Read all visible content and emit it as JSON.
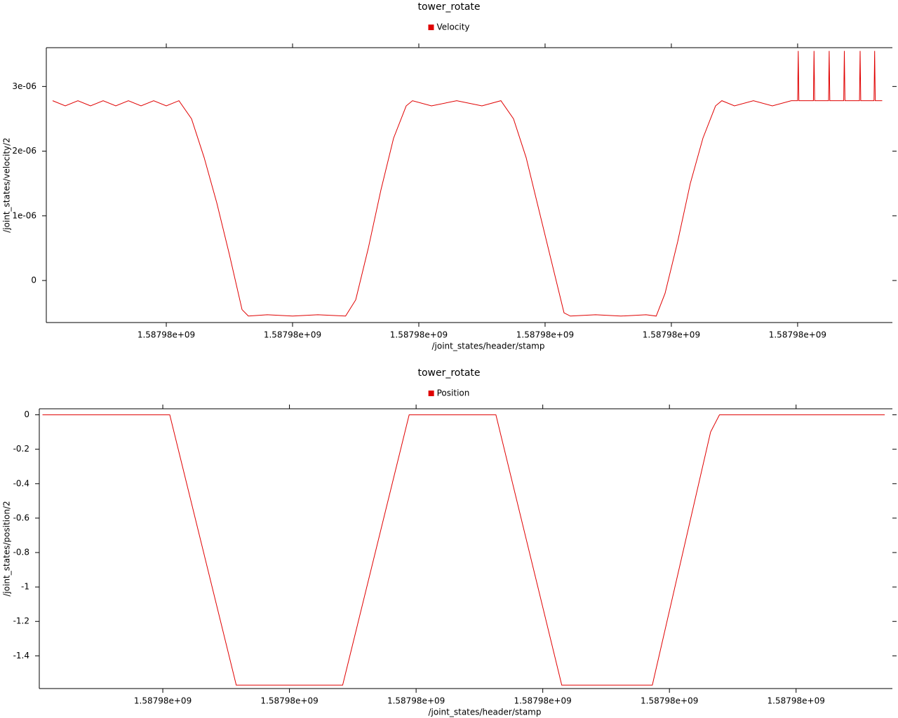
{
  "chart_data": [
    {
      "type": "line",
      "title": "tower_rotate",
      "x_label": "/joint_states/header/stamp",
      "y_label": "/joint_states/velocity/2",
      "x": [
        1587980002,
        1587980004,
        1587980006,
        1587980008,
        1587980010,
        1587980012,
        1587980014,
        1587980016,
        1587980018,
        1587980020,
        1587980022,
        1587980024,
        1587980026,
        1587980028,
        1587980030,
        1587980032,
        1587980033,
        1587980036,
        1587980040,
        1587980044,
        1587980048.4,
        1587980050,
        1587980052,
        1587980054,
        1587980056,
        1587980058,
        1587980059,
        1587980062,
        1587980066,
        1587980070,
        1587980073,
        1587980075,
        1587980077,
        1587980079,
        1587980081,
        1587980083,
        1587980084,
        1587980088,
        1587980092,
        1587980096,
        1587980097.6,
        1587980099,
        1587980101,
        1587980103,
        1587980105,
        1587980107,
        1587980108,
        1587980110,
        1587980113,
        1587980116,
        1587980119,
        1587980120,
        1587980120.1,
        1587980120.2,
        1587980122.5,
        1587980122.6,
        1587980122.7,
        1587980124.9,
        1587980125,
        1587980125.1,
        1587980127.3,
        1587980127.4,
        1587980127.5,
        1587980129.8,
        1587980129.9,
        1587980130,
        1587980132.1,
        1587980132.2,
        1587980132.3,
        1587980133.4
      ],
      "series": [
        {
          "name": "Velocity",
          "color": "#e00000",
          "values": [
            2.78e-06,
            2.7e-06,
            2.78e-06,
            2.7e-06,
            2.78e-06,
            2.7e-06,
            2.78e-06,
            2.7e-06,
            2.78e-06,
            2.7e-06,
            2.78e-06,
            2.5e-06,
            1.9e-06,
            1.2e-06,
            4e-07,
            -4.5e-07,
            -5.5e-07,
            -5.3e-07,
            -5.5e-07,
            -5.3e-07,
            -5.5e-07,
            -3e-07,
            5e-07,
            1.4e-06,
            2.2e-06,
            2.7e-06,
            2.78e-06,
            2.7e-06,
            2.78e-06,
            2.7e-06,
            2.78e-06,
            2.5e-06,
            1.9e-06,
            1.1e-06,
            3e-07,
            -5e-07,
            -5.5e-07,
            -5.3e-07,
            -5.5e-07,
            -5.3e-07,
            -5.5e-07,
            -2e-07,
            6e-07,
            1.5e-06,
            2.2e-06,
            2.7e-06,
            2.78e-06,
            2.7e-06,
            2.78e-06,
            2.7e-06,
            2.78e-06,
            2.78e-06,
            3.55e-06,
            2.78e-06,
            2.78e-06,
            3.55e-06,
            2.78e-06,
            2.78e-06,
            3.55e-06,
            2.78e-06,
            2.78e-06,
            3.55e-06,
            2.78e-06,
            2.78e-06,
            3.55e-06,
            2.78e-06,
            2.78e-06,
            3.55e-06,
            2.78e-06,
            2.78e-06
          ]
        }
      ],
      "xlim": [
        1587980001.44,
        1587980133.9
      ],
      "xticks": [
        {
          "value": 1587980020,
          "label": "1.58798e+09"
        },
        {
          "value": 1587980040,
          "label": "1.58798e+09"
        },
        {
          "value": 1587980060,
          "label": "1.58798e+09"
        },
        {
          "value": 1587980080,
          "label": "1.58798e+09"
        },
        {
          "value": 1587980100,
          "label": "1.58798e+09"
        },
        {
          "value": 1587980120,
          "label": "1.58798e+09"
        }
      ],
      "ylim": [
        -6.5e-07,
        3.6e-06
      ],
      "yticks": [
        0,
        {
          "value": 1e-06,
          "label": "1e-06"
        },
        {
          "value": 2e-06,
          "label": "2e-06"
        },
        {
          "value": 3e-06,
          "label": "3e-06"
        }
      ]
    },
    {
      "type": "line",
      "title": "tower_rotate",
      "x_label": "/joint_states/header/stamp",
      "y_label": "/joint_states/position/2",
      "x": [
        1587980001,
        1587980021.1,
        1587980031.6,
        1587980048.4,
        1587980058.9,
        1587980072.6,
        1587980083,
        1587980097.3,
        1587980106.5,
        1587980107.9,
        1587980134
      ],
      "series": [
        {
          "name": "Position",
          "color": "#e00000",
          "values": [
            0,
            0,
            -1.57,
            -1.57,
            0,
            0,
            -1.57,
            -1.57,
            -0.1,
            0,
            0
          ]
        }
      ],
      "xlim": [
        1587980000.94,
        1587980134.1
      ],
      "xticks": [
        {
          "value": 1587980020,
          "label": "1.58798e+09"
        },
        {
          "value": 1587980040,
          "label": "1.58798e+09"
        },
        {
          "value": 1587980060,
          "label": "1.58798e+09"
        },
        {
          "value": 1587980080,
          "label": "1.58798e+09"
        },
        {
          "value": 1587980100,
          "label": "1.58798e+09"
        },
        {
          "value": 1587980120,
          "label": "1.58798e+09"
        }
      ],
      "ylim": [
        -1.59,
        0.035
      ],
      "yticks": [
        0,
        -0.2,
        -0.4,
        -0.6,
        -0.8,
        -1,
        -1.2,
        -1.4
      ]
    }
  ]
}
